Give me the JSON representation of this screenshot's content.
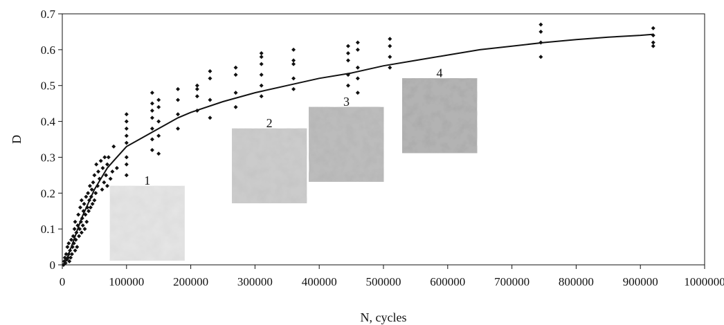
{
  "chart_data": {
    "type": "scatter",
    "xlabel": "N, cycles",
    "ylabel": "D",
    "xlim": [
      0,
      1000000
    ],
    "ylim": [
      0,
      0.7
    ],
    "x_ticks": [
      0,
      100000,
      200000,
      300000,
      400000,
      500000,
      600000,
      700000,
      800000,
      900000,
      1000000
    ],
    "x_tick_labels": [
      "0",
      "100000",
      "200000",
      "300000",
      "400000",
      "500000",
      "600000",
      "700000",
      "800000",
      "900000",
      "1000000"
    ],
    "y_ticks": [
      0,
      0.1,
      0.2,
      0.3,
      0.4,
      0.5,
      0.6,
      0.7
    ],
    "y_tick_labels": [
      "0",
      "0.1",
      "0.2",
      "0.3",
      "0.4",
      "0.5",
      "0.6",
      "0.7"
    ],
    "grid": false,
    "marker_color": "#111111",
    "series": [
      {
        "type": "scatter",
        "points": [
          [
            2000,
            0.0
          ],
          [
            3000,
            0.01
          ],
          [
            4000,
            0.02
          ],
          [
            5000,
            0.005
          ],
          [
            6000,
            0.03
          ],
          [
            7000,
            0.015
          ],
          [
            8000,
            0.05
          ],
          [
            9000,
            0.02
          ],
          [
            10000,
            0.06
          ],
          [
            10000,
            0.03
          ],
          [
            11000,
            0.01
          ],
          [
            12000,
            0.04
          ],
          [
            13000,
            0.02
          ],
          [
            14000,
            0.07
          ],
          [
            15000,
            0.03
          ],
          [
            16000,
            0.05
          ],
          [
            17000,
            0.08
          ],
          [
            18000,
            0.06
          ],
          [
            19000,
            0.1
          ],
          [
            20000,
            0.04
          ],
          [
            20000,
            0.12
          ],
          [
            21000,
            0.07
          ],
          [
            22000,
            0.09
          ],
          [
            23000,
            0.05
          ],
          [
            24000,
            0.11
          ],
          [
            25000,
            0.14
          ],
          [
            26000,
            0.08
          ],
          [
            27000,
            0.1
          ],
          [
            28000,
            0.16
          ],
          [
            29000,
            0.12
          ],
          [
            30000,
            0.09
          ],
          [
            30000,
            0.18
          ],
          [
            31000,
            0.13
          ],
          [
            32000,
            0.11
          ],
          [
            33000,
            0.15
          ],
          [
            34000,
            0.17
          ],
          [
            35000,
            0.1
          ],
          [
            36000,
            0.14
          ],
          [
            37000,
            0.19
          ],
          [
            38000,
            0.12
          ],
          [
            39000,
            0.16
          ],
          [
            40000,
            0.2
          ],
          [
            41000,
            0.15
          ],
          [
            42000,
            0.18
          ],
          [
            43000,
            0.22
          ],
          [
            44000,
            0.16
          ],
          [
            45000,
            0.19
          ],
          [
            46000,
            0.21
          ],
          [
            47000,
            0.17
          ],
          [
            48000,
            0.23
          ],
          [
            50000,
            0.18
          ],
          [
            50000,
            0.25
          ],
          [
            52000,
            0.2
          ],
          [
            53000,
            0.28
          ],
          [
            55000,
            0.22
          ],
          [
            56000,
            0.26
          ],
          [
            58000,
            0.24
          ],
          [
            60000,
            0.29
          ],
          [
            62000,
            0.21
          ],
          [
            63000,
            0.27
          ],
          [
            65000,
            0.23
          ],
          [
            66000,
            0.3
          ],
          [
            68000,
            0.25
          ],
          [
            70000,
            0.22
          ],
          [
            70000,
            0.28
          ],
          [
            72000,
            0.3
          ],
          [
            75000,
            0.24
          ],
          [
            78000,
            0.26
          ],
          [
            80000,
            0.33
          ],
          [
            85000,
            0.27
          ],
          [
            100000,
            0.25
          ],
          [
            100000,
            0.28
          ],
          [
            100000,
            0.3
          ],
          [
            100000,
            0.34
          ],
          [
            100000,
            0.36
          ],
          [
            100000,
            0.38
          ],
          [
            100000,
            0.4
          ],
          [
            100000,
            0.42
          ],
          [
            140000,
            0.32
          ],
          [
            140000,
            0.35
          ],
          [
            140000,
            0.38
          ],
          [
            140000,
            0.41
          ],
          [
            140000,
            0.43
          ],
          [
            140000,
            0.45
          ],
          [
            140000,
            0.48
          ],
          [
            150000,
            0.31
          ],
          [
            150000,
            0.36
          ],
          [
            150000,
            0.4
          ],
          [
            150000,
            0.44
          ],
          [
            150000,
            0.46
          ],
          [
            180000,
            0.38
          ],
          [
            180000,
            0.42
          ],
          [
            180000,
            0.46
          ],
          [
            180000,
            0.49
          ],
          [
            210000,
            0.43
          ],
          [
            210000,
            0.47
          ],
          [
            210000,
            0.49
          ],
          [
            210000,
            0.5
          ],
          [
            230000,
            0.41
          ],
          [
            230000,
            0.46
          ],
          [
            230000,
            0.52
          ],
          [
            230000,
            0.54
          ],
          [
            270000,
            0.44
          ],
          [
            270000,
            0.48
          ],
          [
            270000,
            0.53
          ],
          [
            270000,
            0.55
          ],
          [
            310000,
            0.47
          ],
          [
            310000,
            0.5
          ],
          [
            310000,
            0.53
          ],
          [
            310000,
            0.56
          ],
          [
            310000,
            0.58
          ],
          [
            310000,
            0.59
          ],
          [
            360000,
            0.49
          ],
          [
            360000,
            0.52
          ],
          [
            360000,
            0.56
          ],
          [
            360000,
            0.57
          ],
          [
            360000,
            0.6
          ],
          [
            445000,
            0.5
          ],
          [
            445000,
            0.53
          ],
          [
            445000,
            0.57
          ],
          [
            445000,
            0.59
          ],
          [
            445000,
            0.61
          ],
          [
            460000,
            0.48
          ],
          [
            460000,
            0.52
          ],
          [
            460000,
            0.55
          ],
          [
            460000,
            0.6
          ],
          [
            460000,
            0.62
          ],
          [
            510000,
            0.55
          ],
          [
            510000,
            0.58
          ],
          [
            510000,
            0.61
          ],
          [
            510000,
            0.63
          ],
          [
            745000,
            0.58
          ],
          [
            745000,
            0.62
          ],
          [
            745000,
            0.65
          ],
          [
            745000,
            0.67
          ],
          [
            920000,
            0.61
          ],
          [
            920000,
            0.62
          ],
          [
            920000,
            0.64
          ],
          [
            920000,
            0.66
          ]
        ]
      },
      {
        "type": "line",
        "points": [
          [
            5000,
            0.01
          ],
          [
            10000,
            0.03
          ],
          [
            20000,
            0.08
          ],
          [
            30000,
            0.13
          ],
          [
            40000,
            0.17
          ],
          [
            50000,
            0.21
          ],
          [
            60000,
            0.24
          ],
          [
            70000,
            0.27
          ],
          [
            80000,
            0.29
          ],
          [
            90000,
            0.31
          ],
          [
            100000,
            0.33
          ],
          [
            120000,
            0.35
          ],
          [
            140000,
            0.37
          ],
          [
            160000,
            0.39
          ],
          [
            180000,
            0.41
          ],
          [
            200000,
            0.425
          ],
          [
            250000,
            0.455
          ],
          [
            300000,
            0.48
          ],
          [
            350000,
            0.5
          ],
          [
            400000,
            0.52
          ],
          [
            450000,
            0.535
          ],
          [
            500000,
            0.555
          ],
          [
            550000,
            0.57
          ],
          [
            600000,
            0.585
          ],
          [
            650000,
            0.6
          ],
          [
            700000,
            0.61
          ],
          [
            750000,
            0.62
          ],
          [
            800000,
            0.628
          ],
          [
            850000,
            0.635
          ],
          [
            900000,
            0.64
          ],
          [
            920000,
            0.643
          ]
        ]
      }
    ],
    "insets": [
      {
        "label": "1",
        "x": 100000,
        "y": 0.22
      },
      {
        "label": "2",
        "x": 290000,
        "y": 0.38
      },
      {
        "label": "3",
        "x": 410000,
        "y": 0.44
      },
      {
        "label": "4",
        "x": 555000,
        "y": 0.52
      }
    ]
  }
}
